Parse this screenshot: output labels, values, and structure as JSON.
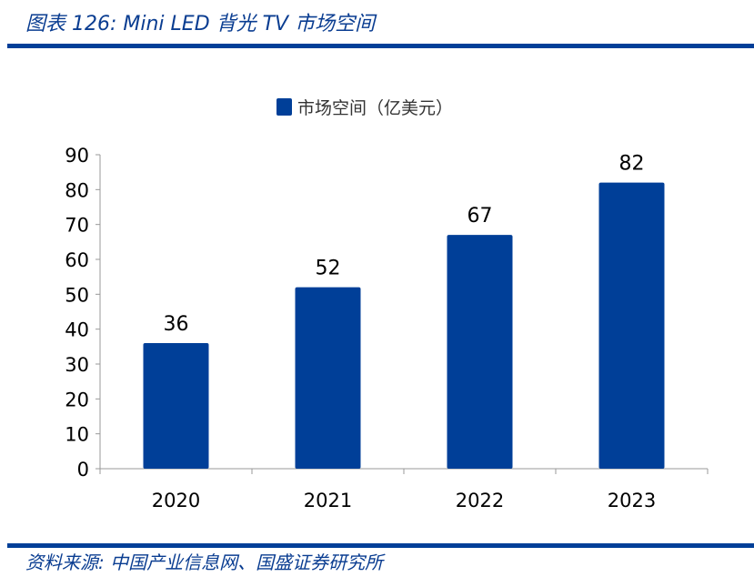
{
  "header": {
    "title": "图表 126:  Mini LED 背光 TV 市场空间"
  },
  "footer": {
    "source": "资料来源:  中国产业信息网、国盛证券研究所"
  },
  "colors": {
    "bar": "#003f98",
    "rule": "#003f98"
  },
  "chart_data": {
    "type": "bar",
    "categories": [
      "2020",
      "2021",
      "2022",
      "2023"
    ],
    "series": [
      {
        "name": "市场空间（亿美元）",
        "values": [
          36,
          52,
          67,
          82
        ]
      }
    ],
    "ylim": [
      0,
      90
    ],
    "yticks": [
      0,
      10,
      20,
      30,
      40,
      50,
      60,
      70,
      80,
      90
    ],
    "grid": false,
    "legend": "top",
    "xlabel": "",
    "ylabel": ""
  }
}
